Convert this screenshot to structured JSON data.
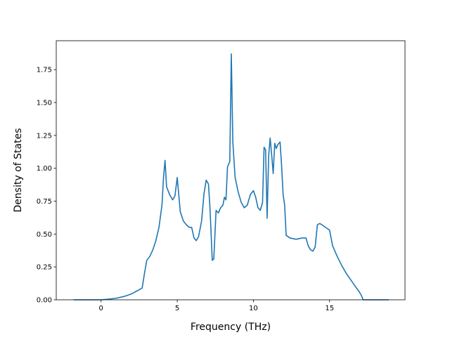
{
  "chart_data": {
    "type": "line",
    "title": "",
    "xlabel": "Frequency (THz)",
    "ylabel": "Density of States",
    "xlim": [
      -2.94,
      19.95
    ],
    "ylim": [
      0,
      1.97
    ],
    "xticks": [
      0,
      5,
      10,
      15
    ],
    "yticks": [
      0.0,
      0.25,
      0.5,
      0.75,
      1.0,
      1.25,
      1.5,
      1.75
    ],
    "xtick_labels": [
      "0",
      "5",
      "10",
      "15"
    ],
    "ytick_labels": [
      "0.00",
      "0.25",
      "0.50",
      "0.75",
      "1.00",
      "1.25",
      "1.50",
      "1.75"
    ],
    "grid": false,
    "line_color": "#1f77b4",
    "series": [
      {
        "x": [
          -1.8,
          0.0,
          0.5,
          1.0,
          1.5,
          2.0,
          2.4,
          2.7,
          2.85,
          3.0,
          3.2,
          3.4,
          3.6,
          3.8,
          4.0,
          4.1,
          4.2,
          4.3,
          4.5,
          4.7,
          4.85,
          5.0,
          5.1,
          5.2,
          5.4,
          5.6,
          5.8,
          5.95,
          6.1,
          6.25,
          6.4,
          6.6,
          6.75,
          6.9,
          7.05,
          7.15,
          7.3,
          7.4,
          7.55,
          7.7,
          7.85,
          8.0,
          8.1,
          8.2,
          8.3,
          8.45,
          8.55,
          8.65,
          8.8,
          9.0,
          9.2,
          9.4,
          9.6,
          9.8,
          10.0,
          10.15,
          10.3,
          10.45,
          10.6,
          10.7,
          10.8,
          10.9,
          11.0,
          11.1,
          11.2,
          11.3,
          11.4,
          11.5,
          11.6,
          11.75,
          11.85,
          11.95,
          12.05,
          12.15,
          12.4,
          12.8,
          13.2,
          13.45,
          13.6,
          13.75,
          13.9,
          14.05,
          14.2,
          14.35,
          14.5,
          14.75,
          15.0,
          15.2,
          15.5,
          15.8,
          16.1,
          16.4,
          16.7,
          16.95,
          17.1,
          17.2,
          17.5,
          18.0,
          18.9
        ],
        "y": [
          0.0,
          0.0,
          0.005,
          0.012,
          0.025,
          0.045,
          0.07,
          0.09,
          0.2,
          0.3,
          0.33,
          0.38,
          0.45,
          0.55,
          0.72,
          0.93,
          1.06,
          0.86,
          0.8,
          0.76,
          0.79,
          0.93,
          0.8,
          0.67,
          0.6,
          0.57,
          0.55,
          0.55,
          0.47,
          0.45,
          0.48,
          0.6,
          0.8,
          0.91,
          0.88,
          0.7,
          0.3,
          0.31,
          0.68,
          0.66,
          0.7,
          0.72,
          0.78,
          0.76,
          1.01,
          1.05,
          1.87,
          1.2,
          0.93,
          0.82,
          0.74,
          0.7,
          0.72,
          0.8,
          0.83,
          0.78,
          0.7,
          0.68,
          0.74,
          1.16,
          1.14,
          0.62,
          1.09,
          1.23,
          1.1,
          0.96,
          1.19,
          1.15,
          1.18,
          1.2,
          1.02,
          0.8,
          0.72,
          0.49,
          0.47,
          0.46,
          0.47,
          0.47,
          0.41,
          0.38,
          0.37,
          0.4,
          0.57,
          0.58,
          0.57,
          0.55,
          0.53,
          0.41,
          0.33,
          0.26,
          0.2,
          0.15,
          0.1,
          0.06,
          0.03,
          0.0,
          0.0,
          0.0,
          0.0
        ]
      }
    ]
  }
}
